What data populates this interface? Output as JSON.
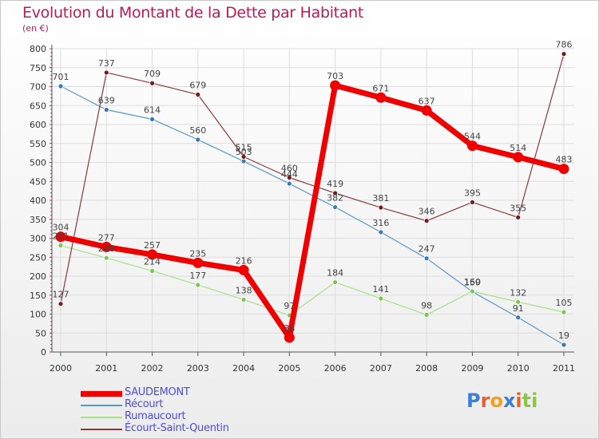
{
  "title": "Evolution du Montant de la Dette par Habitant",
  "subtitle": "(en €)",
  "logo": {
    "letters": [
      "P",
      "r",
      "o",
      "x",
      "i",
      "t",
      "i"
    ],
    "colors": [
      "#3a7fd5",
      "#e8612c",
      "#f2a01e",
      "#3a7fd5",
      "#e8612c",
      "#8cc63f",
      "#8cc63f"
    ]
  },
  "chart_data": {
    "type": "line",
    "categories": [
      "2000",
      "2001",
      "2002",
      "2003",
      "2004",
      "2005",
      "2006",
      "2007",
      "2008",
      "2009",
      "2010",
      "2011"
    ],
    "ylim": [
      0,
      800
    ],
    "yticks": [
      "0",
      "50",
      "100",
      "150",
      "200",
      "250",
      "300",
      "350",
      "400",
      "450",
      "500",
      "550",
      "600",
      "650",
      "700",
      "750",
      "800"
    ],
    "grid": true,
    "legend_position": "bottom-left",
    "series": [
      {
        "name": "Récourt",
        "color": "#5a98c8",
        "marker": "#3a7ab8",
        "values": [
          701,
          639,
          614,
          560,
          503,
          444,
          382,
          316,
          247,
          159,
          91,
          19
        ]
      },
      {
        "name": "Rumaucourt",
        "color": "#a8e08a",
        "marker": "#78c850",
        "values": [
          281,
          248,
          214,
          177,
          138,
          97,
          184,
          141,
          98,
          160,
          132,
          105
        ]
      },
      {
        "name": "Écourt-Saint-Quentin",
        "color": "#8a3a3a",
        "marker": "#6e1e1e",
        "values": [
          127,
          737,
          709,
          679,
          515,
          460,
          419,
          381,
          346,
          395,
          355,
          786
        ]
      },
      {
        "name": "SAUDEMONT",
        "color": "#ee0000",
        "marker": "#ee0000",
        "values": [
          304,
          277,
          257,
          235,
          216,
          38,
          703,
          671,
          637,
          544,
          514,
          483
        ]
      }
    ],
    "point_labels": {
      "Récourt": [
        "701",
        "639",
        "614",
        "560",
        "503",
        "444",
        "382",
        "316",
        "247",
        "159",
        "91",
        "19"
      ],
      "Rumaucourt": [
        "281",
        "248",
        "214",
        "177",
        "138",
        "97",
        "184",
        "141",
        "98",
        "160",
        "132",
        "105"
      ],
      "Écourt-Saint-Quentin": [
        "127",
        "737",
        "709",
        "679",
        "515",
        "460",
        "419",
        "381",
        "346",
        "395",
        "355",
        "786"
      ],
      "SAUDEMONT": [
        "304",
        "277",
        "257",
        "235",
        "216",
        "38",
        "703",
        "671",
        "637",
        "544",
        "514",
        "483"
      ]
    },
    "legend_order": [
      "SAUDEMONT",
      "Récourt",
      "Rumaucourt",
      "Écourt-Saint-Quentin"
    ]
  }
}
